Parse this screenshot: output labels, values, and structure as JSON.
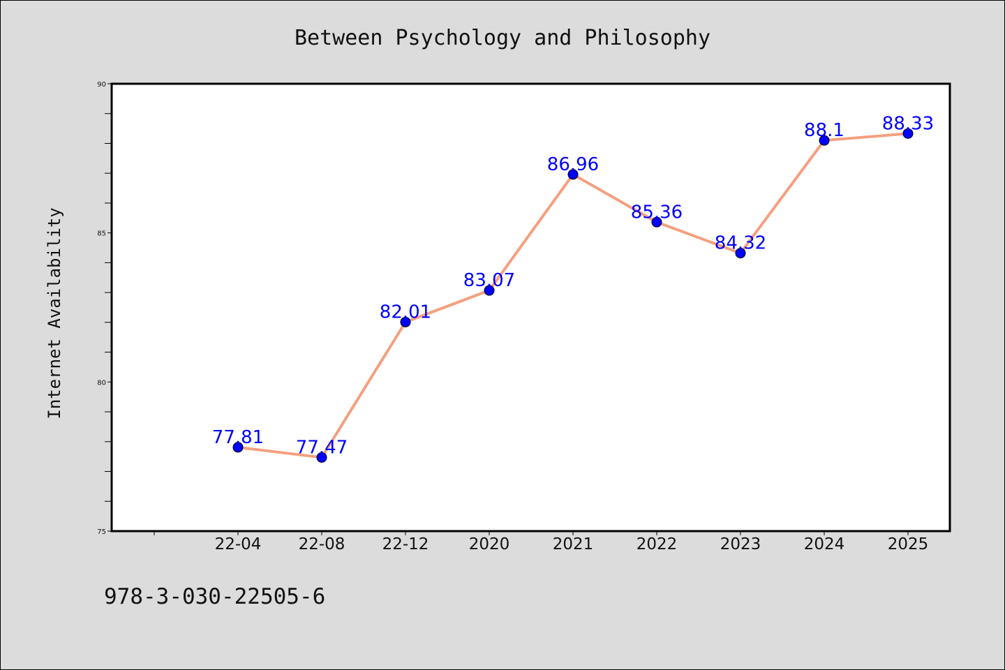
{
  "colors": {
    "background": "#dcdcdc",
    "plot_background": "#ffffff",
    "line": "#f4a07f",
    "marker": "#0000ff",
    "data_label": "#0000ff"
  },
  "footer": {
    "isbn": "978-3-030-22505-6"
  },
  "chart_data": {
    "type": "line",
    "title": "Between Psychology and Philosophy",
    "xlabel": "",
    "ylabel": "Internet Availability",
    "categories": [
      "22-04",
      "22-08",
      "22-12",
      "2020",
      "2021",
      "2022",
      "2023",
      "2024",
      "2025"
    ],
    "series": [
      {
        "values": [
          77.81,
          77.47,
          82.01,
          83.07,
          86.96,
          85.36,
          84.32,
          88.1,
          88.33
        ],
        "labels": [
          "77.81",
          "77.47",
          "82.01",
          "83.07",
          "86.96",
          "85.36",
          "84.32",
          "88.1",
          "88.33"
        ]
      }
    ],
    "ylim": [
      75,
      90
    ],
    "yticks": [
      "75",
      "80",
      "85",
      "90"
    ],
    "y_minor_step": 1,
    "grid": false,
    "legend": "none"
  }
}
